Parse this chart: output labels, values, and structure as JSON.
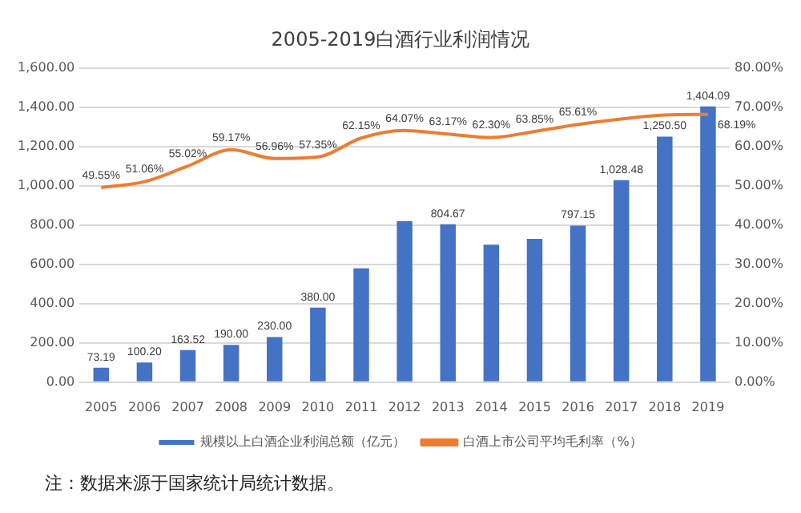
{
  "chart_data": {
    "type": "bar",
    "title": "2005-2019白酒行业利润情况",
    "categories": [
      "2005",
      "2006",
      "2007",
      "2008",
      "2009",
      "2010",
      "2011",
      "2012",
      "2013",
      "2014",
      "2015",
      "2016",
      "2017",
      "2018",
      "2019"
    ],
    "series": [
      {
        "name": "规模以上白酒企业利润总额（亿元）",
        "type": "bar",
        "color": "#4472c4",
        "values": [
          73.19,
          100.2,
          163.52,
          190,
          230,
          380,
          580,
          820,
          804.67,
          700,
          730,
          797.15,
          1028.48,
          1250.5,
          1404.09
        ],
        "value_labels": [
          "73.19",
          "100.20",
          "163.52",
          "190.00",
          "230.00",
          "380.00",
          null,
          null,
          "804.67",
          null,
          null,
          "797.15",
          "1,028.48",
          "1,250.50",
          "1,404.09"
        ]
      },
      {
        "name": "白酒上市公司平均毛利率（%）",
        "type": "line",
        "axis": "y2",
        "color": "#ed7d31",
        "values": [
          49.55,
          51.06,
          55.02,
          59.17,
          56.96,
          57.35,
          62.15,
          64.07,
          63.17,
          62.3,
          63.85,
          65.61,
          67,
          68,
          68.19
        ],
        "value_labels": [
          "49.55%",
          "51.06%",
          "55.02%",
          "59.17%",
          "56.96%",
          "57.35%",
          "62.15%",
          "64.07%",
          "63.17%",
          "62.30%",
          "63.85%",
          "65.61%",
          null,
          null,
          "68.19%"
        ]
      }
    ],
    "ylim": [
      0,
      1600
    ],
    "yticks": [
      {
        "value": 0,
        "label": "0.00"
      },
      {
        "value": 200,
        "label": "200.00"
      },
      {
        "value": 400,
        "label": "400.00"
      },
      {
        "value": 600,
        "label": "600.00"
      },
      {
        "value": 800,
        "label": "800.00"
      },
      {
        "value": 1000,
        "label": "1,000.00"
      },
      {
        "value": 1200,
        "label": "1,200.00"
      },
      {
        "value": 1400,
        "label": "1,400.00"
      },
      {
        "value": 1600,
        "label": "1,600.00"
      }
    ],
    "y2lim": [
      0,
      80
    ],
    "y2ticks": [
      {
        "value": 0,
        "label": "0.00%"
      },
      {
        "value": 10,
        "label": "10.00%"
      },
      {
        "value": 20,
        "label": "20.00%"
      },
      {
        "value": 30,
        "label": "30.00%"
      },
      {
        "value": 40,
        "label": "40.00%"
      },
      {
        "value": 50,
        "label": "50.00%"
      },
      {
        "value": 60,
        "label": "60.00%"
      },
      {
        "value": 70,
        "label": "70.00%"
      },
      {
        "value": 80,
        "label": "80.00%"
      }
    ],
    "grid": "y",
    "legend": "bottom",
    "marker": "none",
    "annotations": [
      "注：数据来源于国家统计局统计数据。"
    ]
  }
}
